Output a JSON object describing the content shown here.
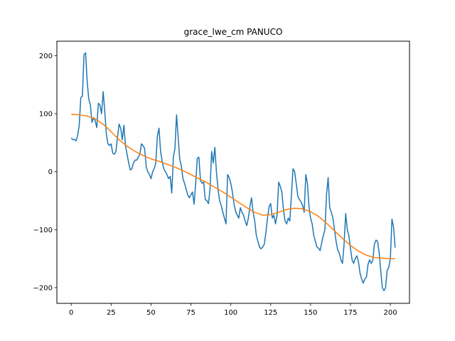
{
  "chart_data": {
    "type": "line",
    "title": "grace_lwe_cm PANUCO",
    "xlabel": "",
    "ylabel": "",
    "xlim": [
      -9,
      212
    ],
    "ylim": [
      -227,
      225
    ],
    "xticks": [
      0,
      25,
      50,
      75,
      100,
      125,
      150,
      175,
      200
    ],
    "yticks": [
      -200,
      -100,
      0,
      100,
      200
    ],
    "grid": false,
    "series": [
      {
        "color": "#1f77b4",
        "x": [
          0,
          1,
          2,
          3,
          4,
          5,
          6,
          7,
          8,
          9,
          10,
          11,
          12,
          13,
          14,
          15,
          16,
          17,
          18,
          19,
          20,
          21,
          22,
          23,
          24,
          25,
          26,
          27,
          28,
          29,
          30,
          31,
          32,
          33,
          34,
          35,
          36,
          37,
          38,
          39,
          40,
          41,
          42,
          43,
          44,
          45,
          46,
          47,
          48,
          49,
          50,
          51,
          52,
          53,
          54,
          55,
          56,
          57,
          58,
          59,
          60,
          61,
          62,
          63,
          64,
          65,
          66,
          67,
          68,
          69,
          70,
          71,
          72,
          73,
          74,
          75,
          76,
          77,
          78,
          79,
          80,
          81,
          82,
          83,
          84,
          85,
          86,
          87,
          88,
          89,
          90,
          91,
          92,
          93,
          94,
          95,
          96,
          97,
          98,
          99,
          100,
          101,
          102,
          103,
          104,
          105,
          106,
          107,
          108,
          109,
          110,
          111,
          112,
          113,
          114,
          115,
          116,
          117,
          118,
          119,
          120,
          121,
          122,
          123,
          124,
          125,
          126,
          127,
          128,
          129,
          130,
          131,
          132,
          133,
          134,
          135,
          136,
          137,
          138,
          139,
          140,
          141,
          142,
          143,
          144,
          145,
          146,
          147,
          148,
          149,
          150,
          151,
          152,
          153,
          154,
          155,
          156,
          157,
          158,
          159,
          160,
          161,
          162,
          163,
          164,
          165,
          166,
          167,
          168,
          169,
          170,
          171,
          172,
          173,
          174,
          175,
          176,
          177,
          178,
          179,
          180,
          181,
          182,
          183,
          184,
          185,
          186,
          187,
          188,
          189,
          190,
          191,
          192,
          193,
          194,
          195,
          196,
          197,
          198,
          199,
          200,
          201,
          202,
          203
        ],
        "y": [
          58,
          55,
          56,
          53,
          62,
          80,
          128,
          130,
          202,
          205,
          155,
          125,
          115,
          85,
          93,
          88,
          76,
          118,
          115,
          100,
          138,
          105,
          65,
          48,
          45,
          48,
          32,
          30,
          35,
          60,
          82,
          75,
          55,
          80,
          45,
          30,
          15,
          3,
          5,
          15,
          20,
          20,
          25,
          30,
          48,
          45,
          40,
          8,
          0,
          -5,
          -12,
          0,
          5,
          15,
          62,
          75,
          35,
          18,
          5,
          0,
          -5,
          -12,
          -8,
          -37,
          25,
          40,
          98,
          60,
          22,
          10,
          -12,
          -20,
          -30,
          -40,
          -45,
          -40,
          -35,
          -56,
          -20,
          23,
          25,
          -15,
          -20,
          -18,
          -48,
          -50,
          -55,
          -30,
          35,
          15,
          42,
          0,
          -30,
          -50,
          -58,
          -70,
          -80,
          -90,
          -5,
          -10,
          -20,
          -35,
          -55,
          -68,
          -75,
          -80,
          -62,
          -70,
          -75,
          -85,
          -93,
          -80,
          -60,
          -45,
          -70,
          -85,
          -110,
          -120,
          -130,
          -133,
          -130,
          -125,
          -105,
          -80,
          -60,
          -55,
          -80,
          -75,
          -90,
          -75,
          -18,
          -25,
          -35,
          -65,
          -85,
          -90,
          -80,
          -85,
          -40,
          5,
          0,
          -20,
          -42,
          -48,
          -52,
          -58,
          -70,
          -5,
          -20,
          -60,
          -80,
          -90,
          -110,
          -120,
          -130,
          -132,
          -136,
          -122,
          -110,
          -100,
          -40,
          -10,
          -62,
          -70,
          -80,
          -100,
          -120,
          -135,
          -140,
          -152,
          -158,
          -125,
          -72,
          -100,
          -110,
          -132,
          -152,
          -158,
          -150,
          -145,
          -155,
          -175,
          -185,
          -192,
          -185,
          -182,
          -160,
          -152,
          -158,
          -153,
          -125,
          -118,
          -120,
          -140,
          -172,
          -200,
          -205,
          -200,
          -170,
          -165,
          -150,
          -82,
          -95,
          -131
        ]
      },
      {
        "color": "#ff7f0e",
        "x": [
          0,
          5,
          10,
          15,
          20,
          25,
          30,
          35,
          40,
          45,
          50,
          55,
          60,
          65,
          70,
          75,
          80,
          85,
          90,
          95,
          100,
          105,
          110,
          115,
          120,
          125,
          130,
          135,
          140,
          145,
          150,
          155,
          160,
          165,
          170,
          175,
          180,
          185,
          190,
          195,
          200,
          203
        ],
        "y": [
          99,
          98,
          96,
          91,
          82,
          69,
          55,
          44,
          35,
          28,
          22,
          18,
          13,
          8,
          2,
          -5,
          -12,
          -19,
          -27,
          -35,
          -44,
          -53,
          -62,
          -70,
          -75,
          -74,
          -70,
          -65,
          -63,
          -64,
          -69,
          -77,
          -89,
          -102,
          -115,
          -127,
          -137,
          -144,
          -148,
          -149,
          -150,
          -150
        ]
      }
    ]
  }
}
